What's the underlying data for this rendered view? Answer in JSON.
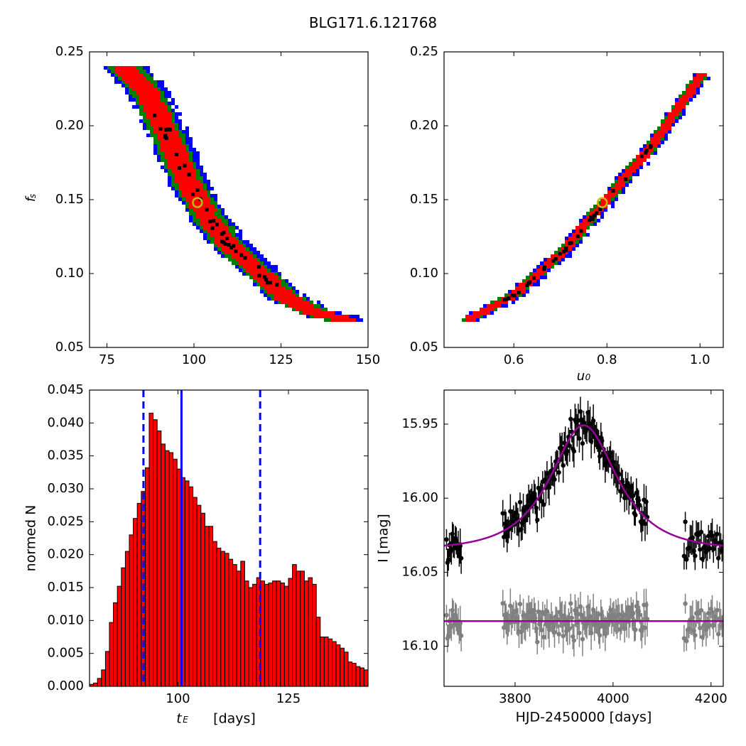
{
  "title": "BLG171.6.121768",
  "chart_data": [
    {
      "type": "heatmap",
      "panel": "top-left",
      "ylabel": "f_s",
      "xlabel": "",
      "xlim": [
        70,
        150
      ],
      "ylim": [
        0.05,
        0.25
      ],
      "xticks": [
        "75",
        "100",
        "125",
        "150"
      ],
      "yticks": [
        "0.05",
        "0.10",
        "0.15",
        "0.20",
        "0.25"
      ],
      "colors": {
        "outer": "#0000ff",
        "middle": "#008000",
        "inner": "#ff0000",
        "best": "#000000",
        "marker": "#bfbf00"
      },
      "best_fit": {
        "x": 101,
        "y": 0.148
      },
      "ridge": {
        "t": [
          80,
          86,
          92,
          98,
          104,
          110,
          118,
          126,
          134,
          143
        ],
        "fs": [
          0.24,
          0.225,
          0.195,
          0.162,
          0.138,
          0.12,
          0.103,
          0.085,
          0.075,
          0.07
        ]
      }
    },
    {
      "type": "heatmap",
      "panel": "top-right",
      "xlabel": "u_0",
      "ylabel": "",
      "xlim": [
        0.45,
        1.05
      ],
      "ylim": [
        0.05,
        0.25
      ],
      "xticks": [
        "0.6",
        "0.8",
        "1.0"
      ],
      "yticks": [
        "0.05",
        "0.10",
        "0.15",
        "0.20",
        "0.25"
      ],
      "best_fit": {
        "x": 0.79,
        "y": 0.148
      },
      "ridge": {
        "u0": [
          0.5,
          0.6,
          0.7,
          0.8,
          0.9,
          1.0
        ],
        "fs": [
          0.07,
          0.087,
          0.115,
          0.152,
          0.19,
          0.235
        ]
      }
    },
    {
      "type": "bar",
      "panel": "bottom-left",
      "xlabel": "t_E  [days]",
      "ylabel": "normed N",
      "xlim": [
        80,
        143
      ],
      "ylim": [
        0,
        0.045
      ],
      "xticks": [
        "100",
        "125"
      ],
      "yticks": [
        "0.000",
        "0.005",
        "0.010",
        "0.015",
        "0.020",
        "0.025",
        "0.030",
        "0.035",
        "0.040",
        "0.045"
      ],
      "bin_start": 80,
      "bin_width": 0.9,
      "values": [
        0.0003,
        0.0005,
        0.0012,
        0.0025,
        0.0053,
        0.0097,
        0.0127,
        0.0152,
        0.018,
        0.0205,
        0.023,
        0.0255,
        0.0278,
        0.0296,
        0.0332,
        0.0415,
        0.0405,
        0.0388,
        0.0368,
        0.0358,
        0.0355,
        0.0345,
        0.033,
        0.0317,
        0.0312,
        0.0303,
        0.0287,
        0.0275,
        0.0263,
        0.0243,
        0.0243,
        0.022,
        0.021,
        0.0205,
        0.0202,
        0.0193,
        0.0185,
        0.0175,
        0.019,
        0.016,
        0.015,
        0.0155,
        0.0165,
        0.016,
        0.0155,
        0.0157,
        0.016,
        0.016,
        0.0157,
        0.0152,
        0.0164,
        0.0185,
        0.0175,
        0.0175,
        0.016,
        0.0165,
        0.0155,
        0.0105,
        0.0075,
        0.0075,
        0.0072,
        0.0068,
        0.0063,
        0.0058,
        0.0052,
        0.0037,
        0.0035,
        0.003,
        0.0028,
        0.0025,
        0.002,
        0.0016,
        0.001,
        0.0005,
        0.0007,
        0.0007,
        0.0005,
        0.0002
      ],
      "vlines": [
        {
          "x": 92.2,
          "style": "dashed",
          "color": "#0000ff"
        },
        {
          "x": 100.8,
          "style": "solid",
          "color": "#0000ff"
        },
        {
          "x": 118.6,
          "style": "dashed",
          "color": "#0000ff"
        }
      ]
    },
    {
      "type": "scatter",
      "panel": "bottom-right",
      "xlabel": "HJD-2450000 [days]",
      "ylabel": "I [mag]",
      "xlim": [
        3655,
        4225
      ],
      "ylim": [
        16.127,
        15.927
      ],
      "xticks": [
        "3800",
        "4000",
        "4200"
      ],
      "yticks": [
        "15.95",
        "16.00",
        "16.05",
        "16.10"
      ],
      "model": {
        "t0": 3940,
        "tE": 100.8,
        "u0": 0.79,
        "fs": 0.148,
        "baseline": 16.035
      },
      "residual_offset": 16.083,
      "series": [
        {
          "name": "data",
          "color": "#000000"
        },
        {
          "name": "residuals",
          "color": "#808080"
        },
        {
          "name": "model",
          "color": "#990099"
        }
      ]
    }
  ]
}
